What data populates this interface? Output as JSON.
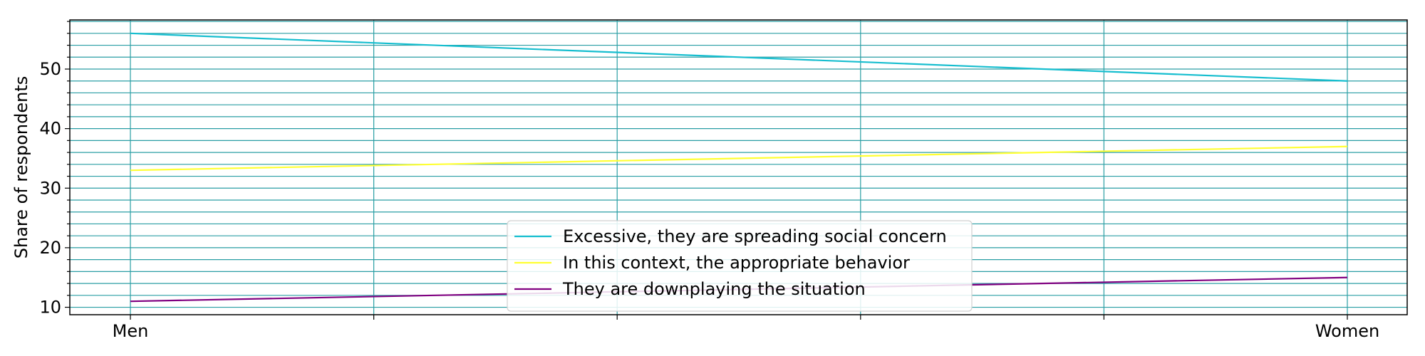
{
  "chart_data": {
    "type": "line",
    "categories": [
      "Men",
      "Women"
    ],
    "series": [
      {
        "name": "Excessive, they are spreading social concern",
        "values": [
          56,
          48
        ],
        "color": "#17becf"
      },
      {
        "name": "In this context, the appropriate behavior",
        "values": [
          33,
          37
        ],
        "color": "#ffff33"
      },
      {
        "name": "They are downplaying the situation",
        "values": [
          11,
          15
        ],
        "color": "#800080"
      }
    ],
    "title": "",
    "xlabel": "",
    "ylabel": "Share of respondents",
    "ylim": [
      8.75,
      58.25
    ],
    "yticks": [
      10,
      20,
      30,
      40,
      50
    ],
    "grid": true,
    "grid_color": "#2a9ea4",
    "legend_position": "lower-center"
  }
}
